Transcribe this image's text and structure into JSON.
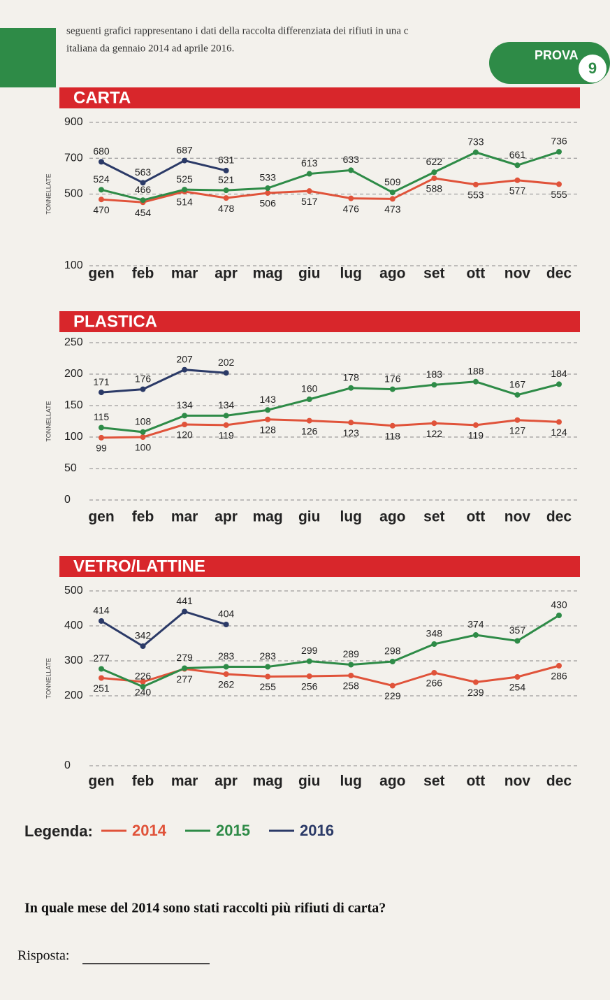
{
  "header": {
    "intro": "seguenti grafici rappresentano i dati della raccolta differenziata dei rifiuti in una c",
    "intro2": "italiana da gennaio 2014 ad aprile 2016.",
    "badge": "PROVA",
    "number": "9"
  },
  "chart_data": [
    {
      "type": "line",
      "title": "CARTA",
      "y_label": "TONNELLATE",
      "categories": [
        "gen",
        "feb",
        "mar",
        "apr",
        "mag",
        "giu",
        "lug",
        "ago",
        "set",
        "ott",
        "nov",
        "dec"
      ],
      "ylim": [
        100,
        900
      ],
      "yticks": [
        100,
        500,
        700,
        900
      ],
      "grid": true,
      "series": [
        {
          "name": "2014",
          "color": "#e0533a",
          "values": [
            470,
            454,
            514,
            478,
            506,
            517,
            476,
            473,
            588,
            553,
            577,
            555
          ]
        },
        {
          "name": "2015",
          "color": "#2e8b47",
          "values": [
            524,
            466,
            525,
            521,
            533,
            613,
            633,
            509,
            622,
            733,
            661,
            736
          ]
        },
        {
          "name": "2016",
          "color": "#2b3a67",
          "values": [
            680,
            563,
            687,
            631,
            null,
            null,
            null,
            null,
            null,
            null,
            null,
            null
          ]
        }
      ]
    },
    {
      "type": "line",
      "title": "PLASTICA",
      "y_label": "TONNELLATE",
      "categories": [
        "gen",
        "feb",
        "mar",
        "apr",
        "mag",
        "giu",
        "lug",
        "ago",
        "set",
        "ott",
        "nov",
        "dec"
      ],
      "ylim": [
        0,
        250
      ],
      "yticks": [
        0,
        50,
        100,
        150,
        200,
        250
      ],
      "grid": true,
      "series": [
        {
          "name": "2014",
          "color": "#e0533a",
          "values": [
            99,
            100,
            120,
            119,
            128,
            126,
            123,
            118,
            122,
            119,
            127,
            124
          ]
        },
        {
          "name": "2015",
          "color": "#2e8b47",
          "values": [
            115,
            108,
            134,
            134,
            143,
            160,
            178,
            176,
            183,
            188,
            167,
            184
          ]
        },
        {
          "name": "2016",
          "color": "#2b3a67",
          "values": [
            171,
            176,
            207,
            202,
            null,
            null,
            null,
            null,
            null,
            null,
            null,
            null
          ]
        }
      ]
    },
    {
      "type": "line",
      "title": "VETRO/LATTINE",
      "y_label": "TONNELLATE",
      "categories": [
        "gen",
        "feb",
        "mar",
        "apr",
        "mag",
        "giu",
        "lug",
        "ago",
        "set",
        "ott",
        "nov",
        "dec"
      ],
      "ylim": [
        0,
        500
      ],
      "yticks": [
        0,
        200,
        300,
        400,
        500
      ],
      "grid": true,
      "series": [
        {
          "name": "2014",
          "color": "#e0533a",
          "values": [
            251,
            240,
            277,
            262,
            255,
            256,
            258,
            229,
            266,
            239,
            254,
            286
          ]
        },
        {
          "name": "2015",
          "color": "#2e8b47",
          "values": [
            277,
            226,
            279,
            283,
            283,
            299,
            289,
            298,
            348,
            374,
            357,
            430
          ]
        },
        {
          "name": "2016",
          "color": "#2b3a67",
          "values": [
            414,
            342,
            441,
            404,
            null,
            null,
            null,
            null,
            null,
            null,
            null,
            null
          ]
        }
      ]
    }
  ],
  "legend_title": "Legenda:",
  "question": "In quale mese del 2014 sono stati raccolti più rifiuti di carta?",
  "answer_label": "Risposta:"
}
